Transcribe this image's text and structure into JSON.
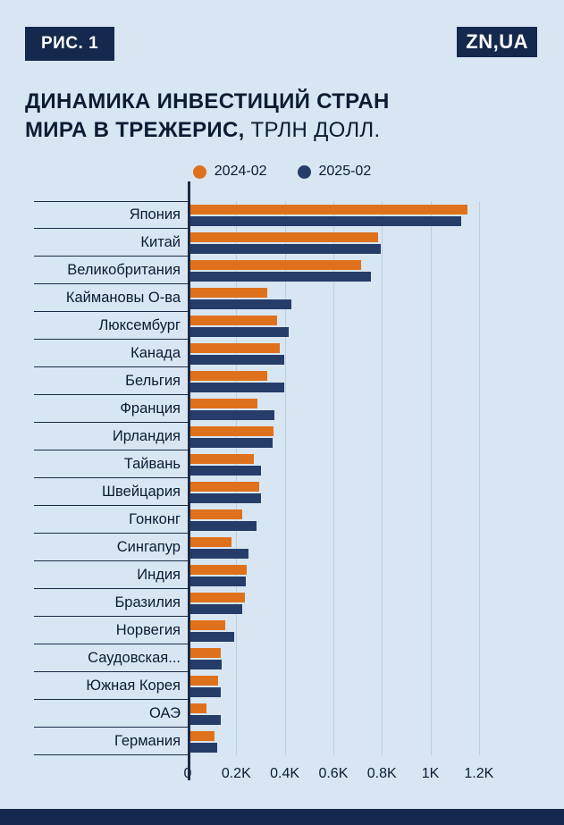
{
  "header": {
    "figure_badge": "РИС. 1",
    "logo": "ZN,UA"
  },
  "title": {
    "line1_bold": "ДИНАМИКА ИНВЕСТИЦИЙ СТРАН",
    "line2_bold": "МИРА В ТРЕЖЕРИС,",
    "line2_regular": " ТРЛН ДОЛЛ."
  },
  "legend": [
    {
      "label": "2024-02",
      "color": "#E0711C"
    },
    {
      "label": "2025-02",
      "color": "#263D6A"
    }
  ],
  "colors": {
    "background": "#D8E6F3",
    "navy_brand": "#14294D",
    "bar_orange": "#E0711C",
    "bar_navy": "#263D6A",
    "axis": "#1B2B45"
  },
  "chart_data": {
    "type": "bar",
    "orientation": "horizontal",
    "title": "ДИНАМИКА ИНВЕСТИЦИЙ СТРАН МИРА В ТРЕЖЕРИС, ТРЛН ДОЛЛ.",
    "categories": [
      "Япония",
      "Китай",
      "Великобритания",
      "Каймановы О-ва",
      "Люксембург",
      "Канада",
      "Бельгия",
      "Франция",
      "Ирландия",
      "Тайвань",
      "Швейцария",
      "Гонконг",
      "Сингапур",
      "Индия",
      "Бразилия",
      "Норвегия",
      "Саудовская...",
      "Южная Корея",
      "ОАЭ",
      "Германия"
    ],
    "series": [
      {
        "name": "2024-02",
        "color": "#E0711C",
        "values": [
          1150,
          780,
          710,
          320,
          360,
          370,
          320,
          280,
          345,
          265,
          285,
          215,
          170,
          235,
          225,
          145,
          125,
          115,
          65,
          100
        ]
      },
      {
        "name": "2025-02",
        "color": "#263D6A",
        "values": [
          1125,
          790,
          750,
          420,
          410,
          390,
          390,
          350,
          340,
          295,
          295,
          275,
          240,
          230,
          215,
          180,
          130,
          125,
          125,
          110
        ]
      }
    ],
    "x_ticks": [
      "0",
      "0.2K",
      "0.4K",
      "0.6K",
      "0.8K",
      "1K",
      "1.2K"
    ],
    "x_tick_values": [
      0,
      200,
      400,
      600,
      800,
      1000,
      1200
    ],
    "xlim": [
      0,
      1440
    ],
    "legend_position": "top",
    "grid": "vertical-faint"
  }
}
